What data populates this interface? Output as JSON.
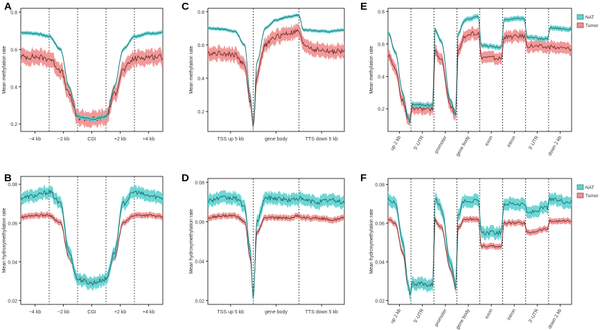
{
  "colors": {
    "nat_line": "#1b6b6b",
    "nat_band": "#5fd2d2",
    "tumor_line": "#6b2b2b",
    "tumor_band": "#f08e8e",
    "axis": "#000000",
    "divider": "#000000"
  },
  "chart_data": [
    {
      "panel_label": "A",
      "type": "line",
      "ylabel": "Mean methylation rate",
      "yticks": [
        "0.2",
        "0.4",
        "0.6",
        "0.8"
      ],
      "ylim": [
        0.16,
        0.82
      ],
      "xticks": [
        "−4 kb",
        "−2 kb",
        "CGI",
        "+2 kb",
        "+4 kb"
      ],
      "dividers": [
        0.2,
        0.4,
        0.6,
        0.8
      ],
      "legend": null,
      "series": [
        {
          "name": "NAT",
          "x": [
            0,
            0.1,
            0.2,
            0.28,
            0.34,
            0.4,
            0.5,
            0.6,
            0.66,
            0.72,
            0.8,
            0.9,
            1.0
          ],
          "y": [
            0.69,
            0.685,
            0.67,
            0.6,
            0.4,
            0.24,
            0.225,
            0.24,
            0.4,
            0.6,
            0.67,
            0.685,
            0.69
          ],
          "band": 0.01
        },
        {
          "name": "Tumor",
          "x": [
            0,
            0.1,
            0.2,
            0.28,
            0.34,
            0.4,
            0.5,
            0.6,
            0.66,
            0.72,
            0.8,
            0.9,
            1.0
          ],
          "y": [
            0.56,
            0.56,
            0.55,
            0.49,
            0.36,
            0.235,
            0.225,
            0.235,
            0.36,
            0.49,
            0.55,
            0.56,
            0.56
          ],
          "band": 0.04
        }
      ]
    },
    {
      "panel_label": "B",
      "type": "line",
      "ylabel": "Mean hydroxymethylation rate",
      "yticks": [
        "0.02",
        "0.04",
        "0.06",
        "0.08"
      ],
      "ylim": [
        0.018,
        0.084
      ],
      "xticks": [
        "−4 kb",
        "−2 kb",
        "CGI",
        "+2 kb",
        "+4 kb"
      ],
      "dividers": [
        0.2,
        0.4,
        0.6,
        0.8
      ],
      "legend": null,
      "series": [
        {
          "name": "NAT",
          "x": [
            0,
            0.1,
            0.2,
            0.28,
            0.34,
            0.4,
            0.5,
            0.6,
            0.66,
            0.72,
            0.8,
            0.9,
            1.0
          ],
          "y": [
            0.073,
            0.074,
            0.076,
            0.07,
            0.045,
            0.031,
            0.029,
            0.031,
            0.045,
            0.07,
            0.076,
            0.074,
            0.073
          ],
          "band": 0.003
        },
        {
          "name": "Tumor",
          "x": [
            0,
            0.1,
            0.2,
            0.28,
            0.34,
            0.4,
            0.5,
            0.6,
            0.66,
            0.72,
            0.8,
            0.9,
            1.0
          ],
          "y": [
            0.063,
            0.064,
            0.064,
            0.06,
            0.042,
            0.031,
            0.0295,
            0.031,
            0.042,
            0.06,
            0.064,
            0.064,
            0.063
          ],
          "band": 0.0015
        }
      ]
    },
    {
      "panel_label": "C",
      "type": "line",
      "ylabel": "Mean methylation rate",
      "yticks": [
        "0.2",
        "0.4",
        "0.6",
        "0.8"
      ],
      "ylim": [
        0.08,
        0.82
      ],
      "xticks": [
        "TSS up 5 kb",
        "gene body",
        "TTS down 5 kb"
      ],
      "dividers": [
        0.333,
        0.667
      ],
      "legend": null,
      "series": [
        {
          "name": "NAT",
          "x": [
            0,
            0.1,
            0.2,
            0.27,
            0.31,
            0.333,
            0.36,
            0.42,
            0.5,
            0.6,
            0.667,
            0.7,
            0.8,
            0.9,
            1.0
          ],
          "y": [
            0.7,
            0.695,
            0.68,
            0.6,
            0.3,
            0.11,
            0.5,
            0.7,
            0.75,
            0.77,
            0.78,
            0.69,
            0.685,
            0.68,
            0.69
          ],
          "band": 0.01
        },
        {
          "name": "Tumor",
          "x": [
            0,
            0.1,
            0.2,
            0.27,
            0.31,
            0.333,
            0.36,
            0.42,
            0.5,
            0.6,
            0.667,
            0.7,
            0.8,
            0.9,
            1.0
          ],
          "y": [
            0.55,
            0.55,
            0.54,
            0.48,
            0.26,
            0.12,
            0.42,
            0.6,
            0.65,
            0.67,
            0.68,
            0.6,
            0.57,
            0.56,
            0.56
          ],
          "band": 0.04
        }
      ]
    },
    {
      "panel_label": "D",
      "type": "line",
      "ylabel": "Mean hydroxymethylation rate",
      "yticks": [
        "0.02",
        "0.04",
        "0.06",
        "0.08"
      ],
      "ylim": [
        0.018,
        0.082
      ],
      "xticks": [
        "TSS up 5 kb",
        "gene body",
        "TTS down 5 kb"
      ],
      "dividers": [
        0.333,
        0.667
      ],
      "legend": null,
      "series": [
        {
          "name": "NAT",
          "x": [
            0,
            0.1,
            0.2,
            0.27,
            0.31,
            0.333,
            0.36,
            0.42,
            0.5,
            0.6,
            0.667,
            0.7,
            0.8,
            0.9,
            1.0
          ],
          "y": [
            0.071,
            0.072,
            0.072,
            0.068,
            0.045,
            0.022,
            0.06,
            0.072,
            0.072,
            0.071,
            0.072,
            0.071,
            0.07,
            0.071,
            0.07
          ],
          "band": 0.003
        },
        {
          "name": "Tumor",
          "x": [
            0,
            0.1,
            0.2,
            0.27,
            0.31,
            0.333,
            0.36,
            0.42,
            0.5,
            0.6,
            0.667,
            0.7,
            0.8,
            0.9,
            1.0
          ],
          "y": [
            0.062,
            0.063,
            0.063,
            0.06,
            0.042,
            0.023,
            0.055,
            0.062,
            0.062,
            0.062,
            0.063,
            0.062,
            0.062,
            0.061,
            0.062
          ],
          "band": 0.0015
        }
      ]
    },
    {
      "panel_label": "E",
      "type": "line",
      "ylabel": "Mean methylation rate",
      "yticks": [
        "0.2",
        "0.4",
        "0.6",
        "0.8"
      ],
      "ylim": [
        0.06,
        0.82
      ],
      "xticks": [
        "up 2 kb",
        "5′-UTR",
        "promoter",
        "gene body",
        "exon",
        "intron",
        "3′-UTR",
        "down 2 kb"
      ],
      "dividers": [
        0.125,
        0.25,
        0.375,
        0.5,
        0.625,
        0.75,
        0.875
      ],
      "legend": {
        "position": "top-right",
        "entries": [
          "NAT",
          "Tumor"
        ]
      },
      "series": [
        {
          "name": "NAT",
          "x": [
            0,
            0.04,
            0.08,
            0.11,
            0.123,
            0.127,
            0.248,
            0.252,
            0.29,
            0.34,
            0.373,
            0.377,
            0.42,
            0.498,
            0.502,
            0.623,
            0.627,
            0.748,
            0.752,
            0.873,
            0.877,
            1.0
          ],
          "y": [
            0.67,
            0.55,
            0.3,
            0.14,
            0.11,
            0.23,
            0.22,
            0.69,
            0.62,
            0.25,
            0.16,
            0.65,
            0.75,
            0.77,
            0.59,
            0.58,
            0.75,
            0.76,
            0.64,
            0.63,
            0.7,
            0.69
          ],
          "band": 0.015
        },
        {
          "name": "Tumor",
          "x": [
            0,
            0.04,
            0.08,
            0.11,
            0.123,
            0.127,
            0.248,
            0.252,
            0.29,
            0.34,
            0.373,
            0.377,
            0.42,
            0.498,
            0.502,
            0.623,
            0.627,
            0.748,
            0.752,
            0.873,
            0.877,
            1.0
          ],
          "y": [
            0.53,
            0.45,
            0.25,
            0.13,
            0.11,
            0.2,
            0.2,
            0.56,
            0.5,
            0.22,
            0.14,
            0.55,
            0.65,
            0.67,
            0.52,
            0.51,
            0.64,
            0.65,
            0.59,
            0.58,
            0.58,
            0.57
          ],
          "band": 0.035
        }
      ]
    },
    {
      "panel_label": "F",
      "type": "line",
      "ylabel": "Mean hydroxymethylation rate",
      "yticks": [
        "0.02",
        "0.04",
        "0.06",
        "0.08"
      ],
      "ylim": [
        0.018,
        0.083
      ],
      "xticks": [
        "up 2 kb",
        "5′-UTR",
        "promoter",
        "gene body",
        "exon",
        "intron",
        "3′-UTR",
        "down 2 kb"
      ],
      "dividers": [
        0.125,
        0.25,
        0.375,
        0.5,
        0.625,
        0.75,
        0.875
      ],
      "legend": {
        "position": "top-right",
        "entries": [
          "NAT",
          "Tumor"
        ]
      },
      "series": [
        {
          "name": "NAT",
          "x": [
            0,
            0.04,
            0.08,
            0.11,
            0.123,
            0.127,
            0.248,
            0.252,
            0.29,
            0.34,
            0.373,
            0.377,
            0.42,
            0.498,
            0.502,
            0.623,
            0.627,
            0.748,
            0.752,
            0.873,
            0.877,
            1.0
          ],
          "y": [
            0.073,
            0.07,
            0.05,
            0.028,
            0.022,
            0.029,
            0.028,
            0.073,
            0.068,
            0.04,
            0.026,
            0.064,
            0.072,
            0.071,
            0.055,
            0.055,
            0.07,
            0.07,
            0.065,
            0.068,
            0.072,
            0.071
          ],
          "band": 0.003
        },
        {
          "name": "Tumor",
          "x": [
            0,
            0.04,
            0.08,
            0.11,
            0.123,
            0.127,
            0.248,
            0.252,
            0.29,
            0.34,
            0.373,
            0.377,
            0.42,
            0.498,
            0.502,
            0.623,
            0.627,
            0.748,
            0.752,
            0.873,
            0.877,
            1.0
          ],
          "y": [
            0.062,
            0.06,
            0.045,
            0.027,
            0.022,
            0.028,
            0.028,
            0.062,
            0.058,
            0.036,
            0.025,
            0.057,
            0.062,
            0.062,
            0.048,
            0.048,
            0.06,
            0.06,
            0.055,
            0.057,
            0.061,
            0.061
          ],
          "band": 0.0015
        }
      ]
    }
  ]
}
